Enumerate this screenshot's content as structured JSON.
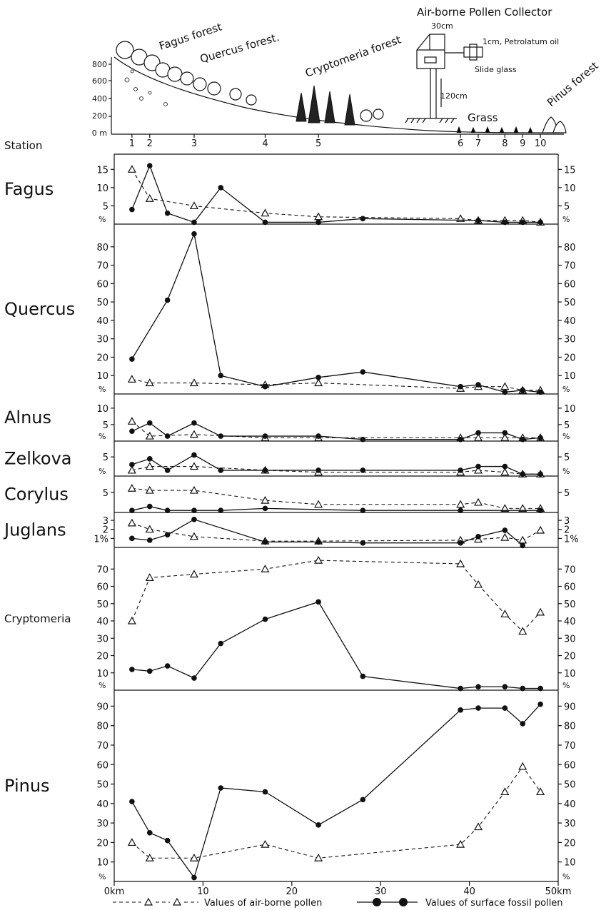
{
  "header": {
    "collector_title": "Air-borne Pollen Collector",
    "collector_box_label": "30cm",
    "collector_oil": "1cm, Petrolatum oil",
    "collector_slide": "Slide glass",
    "collector_height": "120cm",
    "vegetation": [
      "Fagus forest",
      "Quercus forest.",
      "Cryptomeria forest",
      "Grass",
      "Pinus forest"
    ],
    "elevation_ticks": [
      "800",
      "600",
      "400",
      "200",
      "200",
      "0 m"
    ],
    "station_label": "Station"
  },
  "legend": {
    "air_label": "Values of air-borne pollen",
    "fossil_label": "Values of surface fossil pollen"
  },
  "x_axis": {
    "ticks": [
      {
        "value": 0,
        "label": "0km"
      },
      {
        "value": 10,
        "label": "10"
      },
      {
        "value": 20,
        "label": "20"
      },
      {
        "value": 30,
        "label": "30"
      },
      {
        "value": 40,
        "label": "40"
      },
      {
        "value": 50,
        "label": "50km"
      }
    ]
  },
  "chart_data": {
    "type": "line",
    "xlabel": "",
    "x_units": "km",
    "xlim": [
      0,
      50
    ],
    "stations": [
      {
        "label": "1",
        "x": 2
      },
      {
        "label": "2",
        "x": 4
      },
      {
        "label": "3",
        "x": 9
      },
      {
        "label": "4",
        "x": 17
      },
      {
        "label": "5",
        "x": 23
      },
      {
        "label": "6",
        "x": 39
      },
      {
        "label": "7",
        "x": 41
      },
      {
        "label": "8",
        "x": 44
      },
      {
        "label": "9",
        "x": 46
      },
      {
        "label": "10",
        "x": 48
      }
    ],
    "panels": [
      {
        "taxon": "Fagus",
        "ylim": [
          0,
          18
        ],
        "yticks": [
          5,
          10,
          15
        ],
        "tick_labels": [
          "5",
          "10",
          "15"
        ],
        "unit_label": "%",
        "air_x": [
          2,
          4,
          9,
          17,
          23,
          39,
          41,
          44,
          46,
          48
        ],
        "air_y": [
          15,
          7,
          5,
          3,
          2,
          1.5,
          1,
          1,
          1,
          0.5
        ],
        "fossil_x": [
          2,
          4,
          6,
          9,
          12,
          17,
          23,
          28,
          41,
          44,
          46,
          48
        ],
        "fossil_y": [
          4,
          16,
          3,
          0.5,
          10,
          0.5,
          0.5,
          1.5,
          1,
          0.5,
          0.5,
          0.5
        ]
      },
      {
        "taxon": "Quercus",
        "ylim": [
          0,
          90
        ],
        "yticks": [
          10,
          20,
          30,
          40,
          50,
          60,
          70,
          80
        ],
        "tick_labels": [
          "10",
          "20",
          "30",
          "40",
          "50",
          "60",
          "70",
          "80"
        ],
        "unit_label": "%",
        "air_x": [
          2,
          4,
          9,
          17,
          23,
          39,
          41,
          44,
          46,
          48
        ],
        "air_y": [
          8,
          6,
          6,
          5,
          6,
          3,
          4,
          4,
          2,
          2
        ],
        "fossil_x": [
          2,
          6,
          9,
          12,
          17,
          23,
          28,
          39,
          41,
          44,
          46,
          48
        ],
        "fossil_y": [
          19,
          51,
          87,
          10,
          4,
          9,
          12,
          4,
          5,
          1,
          2,
          1
        ]
      },
      {
        "taxon": "Alnus",
        "ylim": [
          0,
          13
        ],
        "yticks": [
          5,
          10
        ],
        "tick_labels": [
          "5",
          "10"
        ],
        "unit_label": "%",
        "air_x": [
          2,
          4,
          9,
          17,
          23,
          39,
          41,
          44,
          46,
          48
        ],
        "air_y": [
          6,
          1.5,
          2,
          1,
          1,
          1,
          1,
          1,
          1,
          1
        ],
        "fossil_x": [
          2,
          4,
          6,
          9,
          12,
          17,
          23,
          28,
          39,
          41,
          44,
          46,
          48
        ],
        "fossil_y": [
          3,
          5.5,
          1.5,
          5.5,
          1.5,
          1.5,
          1.5,
          0.5,
          0.5,
          2.5,
          2.5,
          0.5,
          1
        ]
      },
      {
        "taxon": "Zelkova",
        "ylim": [
          0,
          8
        ],
        "yticks": [
          5
        ],
        "tick_labels": [
          "5"
        ],
        "unit_label": "%",
        "air_x": [
          2,
          4,
          9,
          17,
          23,
          39,
          41,
          44,
          46,
          48
        ],
        "air_y": [
          1.5,
          2.5,
          2.5,
          1.5,
          1,
          1,
          1.5,
          1,
          0.5,
          0.5
        ],
        "fossil_x": [
          2,
          4,
          6,
          9,
          12,
          17,
          23,
          28,
          39,
          41,
          44,
          46,
          48
        ],
        "fossil_y": [
          3,
          4.5,
          1.5,
          5.5,
          1.5,
          1.5,
          1.5,
          1.5,
          1.5,
          2.5,
          2.5,
          0.5,
          0.5
        ]
      },
      {
        "taxon": "Corylus",
        "ylim": [
          0,
          8
        ],
        "yticks": [
          5
        ],
        "tick_labels": [
          "5"
        ],
        "unit_label": "",
        "air_x": [
          2,
          4,
          9,
          17,
          23,
          39,
          41,
          44,
          46,
          48
        ],
        "air_y": [
          6,
          5.5,
          5.5,
          3,
          2,
          2,
          2.5,
          1,
          1,
          1
        ],
        "fossil_x": [
          2,
          4,
          6,
          9,
          12,
          17,
          28,
          39,
          48
        ],
        "fossil_y": [
          0.5,
          1.5,
          0.5,
          0.5,
          0.5,
          1,
          0.5,
          0.5,
          0.5
        ]
      },
      {
        "taxon": "Juglans",
        "ylim": [
          0,
          3.4
        ],
        "yticks": [
          1,
          2,
          3
        ],
        "tick_labels": [
          "1%",
          "2",
          "3"
        ],
        "unit_label": "",
        "air_x": [
          2,
          4,
          9,
          17,
          23,
          39,
          41,
          44,
          46,
          48
        ],
        "air_y": [
          2.7,
          2,
          1.2,
          0.7,
          0.7,
          0.8,
          0.9,
          1.1,
          0.8,
          1.9
        ],
        "fossil_x": [
          2,
          4,
          6,
          9,
          17,
          23,
          28,
          39,
          41,
          44,
          46
        ],
        "fossil_y": [
          1,
          0.8,
          1.4,
          3.1,
          0.6,
          0.6,
          0.5,
          0.5,
          1.2,
          1.9,
          0.2
        ]
      },
      {
        "taxon": "Cryptomeria",
        "ylim": [
          0,
          80
        ],
        "yticks": [
          10,
          20,
          30,
          40,
          50,
          60,
          70
        ],
        "tick_labels": [
          "10",
          "20",
          "30",
          "40",
          "50",
          "60",
          "70"
        ],
        "unit_label": "%",
        "air_x": [
          2,
          4,
          9,
          17,
          23,
          39,
          41,
          44,
          46,
          48
        ],
        "air_y": [
          40,
          65,
          67,
          70,
          75,
          73,
          61,
          44,
          34,
          45
        ],
        "fossil_x": [
          2,
          4,
          6,
          9,
          12,
          17,
          23,
          28,
          39,
          41,
          44,
          46,
          48
        ],
        "fossil_y": [
          12,
          11,
          14,
          7,
          27,
          41,
          51,
          8,
          1,
          2,
          2,
          1,
          1
        ]
      },
      {
        "taxon": "Pinus",
        "ylim": [
          0,
          96
        ],
        "yticks": [
          10,
          20,
          30,
          40,
          50,
          60,
          70,
          80,
          90
        ],
        "tick_labels": [
          "10",
          "20",
          "30",
          "40",
          "50",
          "60",
          "70",
          "80",
          "90"
        ],
        "unit_label": "%",
        "air_x": [
          2,
          4,
          9,
          17,
          23,
          39,
          41,
          44,
          46,
          48
        ],
        "air_y": [
          20,
          12,
          12,
          19,
          12,
          19,
          28,
          46,
          59,
          46
        ],
        "fossil_x": [
          2,
          4,
          6,
          9,
          12,
          17,
          23,
          28,
          39,
          41,
          44,
          46,
          48
        ],
        "fossil_y": [
          41,
          25,
          21,
          2,
          48,
          46,
          29,
          42,
          88,
          89,
          89,
          81,
          91
        ]
      }
    ]
  }
}
